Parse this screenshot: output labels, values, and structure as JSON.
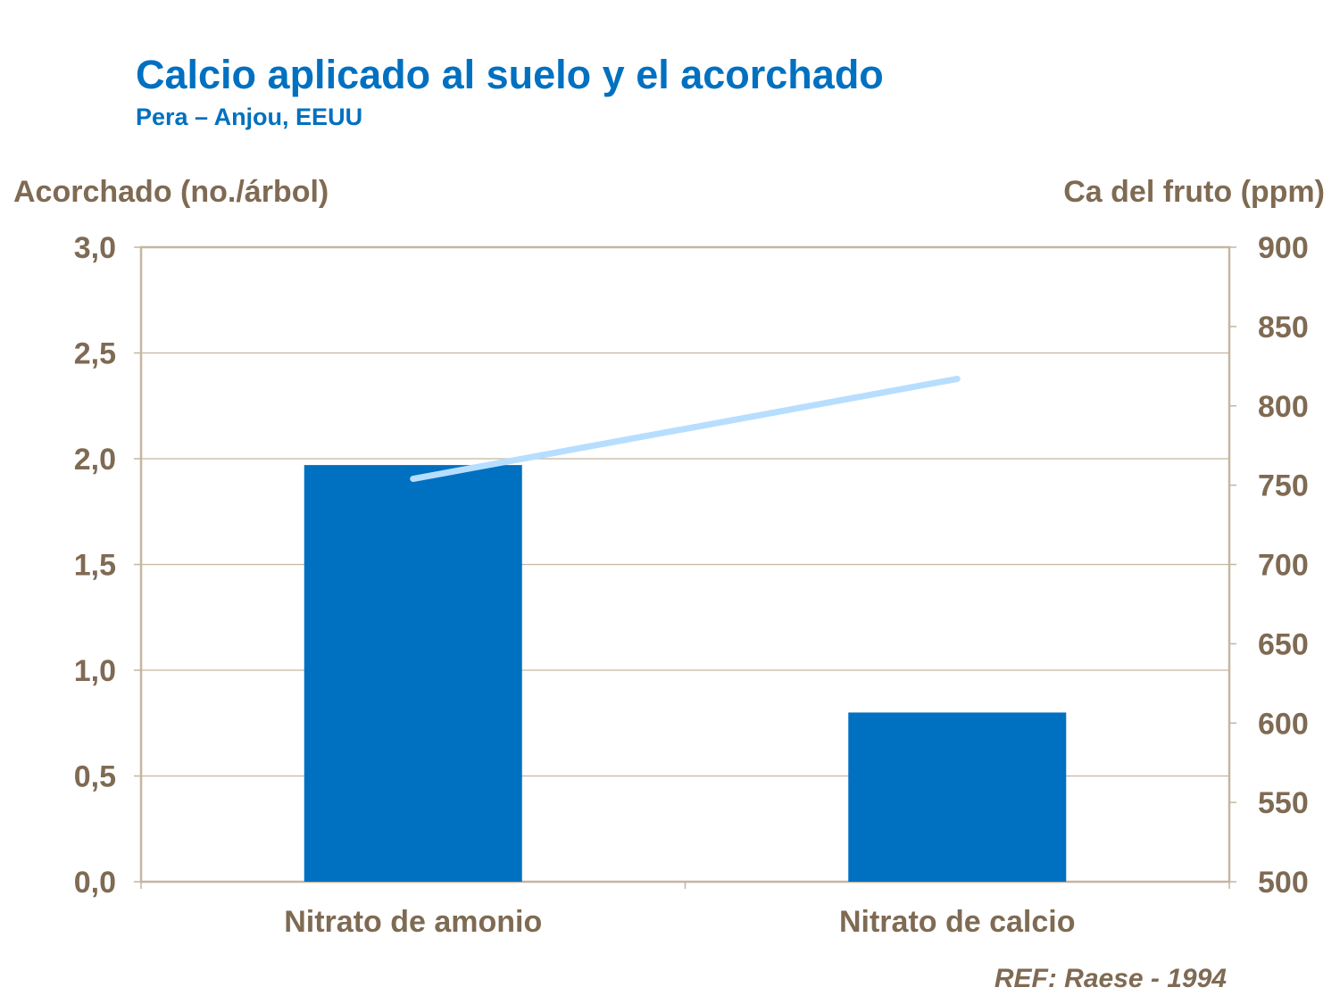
{
  "chart_data": {
    "type": "bar",
    "title": "Calcio aplicado al suelo y el acorchado",
    "subtitle": "Pera – Anjou, EEUU",
    "ylabel_left": "Acorchado (no./árbol)",
    "ylabel_right": "Ca del fruto (ppm)",
    "categories": [
      "Nitrato de amonio",
      "Nitrato de calcio"
    ],
    "series": [
      {
        "type": "bar",
        "axis": "left",
        "values": [
          1.97,
          0.8
        ],
        "color": "#0070C0"
      },
      {
        "type": "line",
        "axis": "right",
        "values": [
          754,
          817
        ],
        "color": "#B7DEFF"
      }
    ],
    "ylim_left": [
      0,
      3
    ],
    "left_ticks": [
      "0,0",
      "0,5",
      "1,0",
      "1,5",
      "2,0",
      "2,5",
      "3,0"
    ],
    "ylim_right": [
      500,
      900
    ],
    "right_ticks": [
      "500",
      "550",
      "600",
      "650",
      "700",
      "750",
      "800",
      "850",
      "900"
    ],
    "grid": true,
    "reference": "REF: Raese - 1994",
    "colors": {
      "title": "#0070C0",
      "text": "#7F6A53",
      "grid": "#C4B6A0"
    }
  }
}
